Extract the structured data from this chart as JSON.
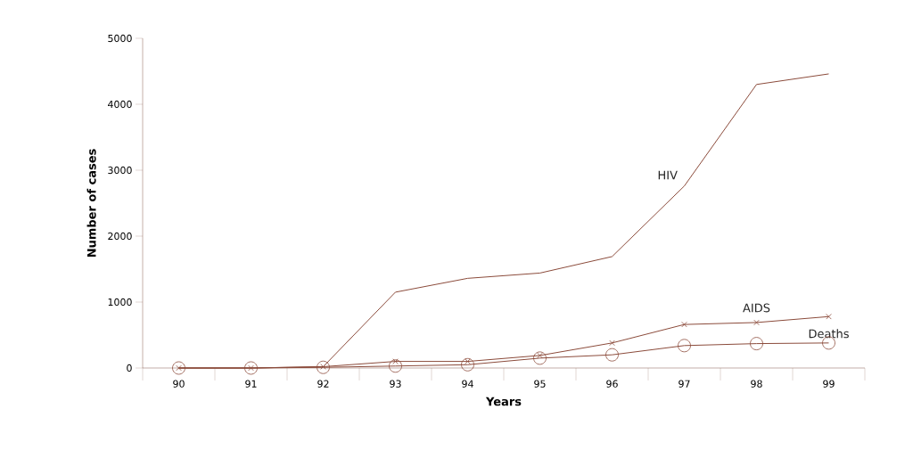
{
  "chart_data": {
    "type": "line",
    "xlabel": "Years",
    "ylabel": "Number of cases",
    "categories": [
      "90",
      "91",
      "92",
      "93",
      "94",
      "95",
      "96",
      "97",
      "98",
      "99"
    ],
    "series": [
      {
        "name": "HIV",
        "color": "#8b4a3a",
        "marker": "none",
        "values": [
          0,
          0,
          20,
          1150,
          1360,
          1440,
          1690,
          2760,
          4300,
          4460
        ]
      },
      {
        "name": "AIDS",
        "color": "#8b4a3a",
        "marker": "cross",
        "values": [
          0,
          0,
          20,
          100,
          100,
          190,
          380,
          660,
          690,
          780
        ]
      },
      {
        "name": "Deaths",
        "color": "#8b4a3a",
        "marker": "circle",
        "values": [
          0,
          0,
          10,
          30,
          50,
          150,
          200,
          340,
          370,
          380
        ]
      }
    ],
    "ylim": [
      0,
      5000
    ],
    "yticks": [
      0,
      1000,
      2000,
      3000,
      4000,
      5000
    ],
    "grid": false,
    "legend": false,
    "line_style": "solid"
  }
}
